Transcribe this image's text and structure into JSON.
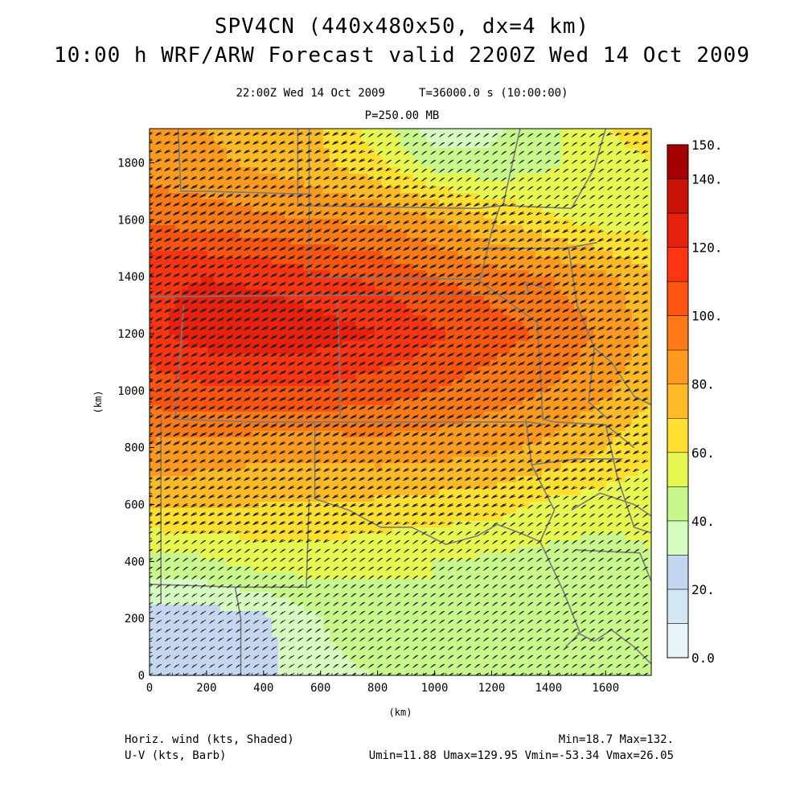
{
  "header": {
    "title_line1": "SPV4CN (440x480x50, dx=4 km)",
    "title_line2": "10:00 h WRF/ARW Forecast valid 2200Z Wed 14 Oct 2009",
    "subtitle_time": "22:00Z Wed 14 Oct 2009     T=36000.0 s (10:00:00)",
    "subtitle_level": "P=250.00 MB"
  },
  "footer": {
    "field1_label": "Horiz. wind (kts, Shaded)",
    "field2_label": "U-V (kts, Barb)",
    "minmax": "Min=18.7 Max=132.",
    "uv_stats": "Umin=11.88 Umax=129.95 Vmin=-53.34 Vmax=26.05"
  },
  "chart_data": {
    "type": "heatmap",
    "xlabel": "(km)",
    "ylabel": "(km)",
    "xlim": [
      0,
      1760
    ],
    "ylim": [
      0,
      1920
    ],
    "x_ticks": [
      0,
      200,
      400,
      600,
      800,
      1000,
      1200,
      1400,
      1600
    ],
    "y_ticks": [
      0,
      200,
      400,
      600,
      800,
      1000,
      1200,
      1400,
      1600,
      1800
    ],
    "colorbar": {
      "levels": [
        0,
        10,
        20,
        30,
        40,
        50,
        60,
        70,
        80,
        90,
        100,
        110,
        120,
        130,
        140,
        150
      ],
      "labels": [
        "0.0",
        "20.",
        "40.",
        "60.",
        "80.",
        "100.",
        "120.",
        "140.",
        "150."
      ],
      "label_values": [
        0,
        20,
        40,
        60,
        80,
        100,
        120,
        140,
        150
      ],
      "colors": [
        "#e8f4fa",
        "#d2e6f3",
        "#c5d6f0",
        "#d7fcc0",
        "#c8f88c",
        "#e6f750",
        "#ffe030",
        "#ffba26",
        "#ff9a1e",
        "#ff7a16",
        "#ff5410",
        "#ff3412",
        "#e8200e",
        "#c8120a",
        "#a80000"
      ]
    },
    "wind_speed_field_kts": {
      "note_x_km": [
        0,
        200,
        400,
        600,
        800,
        1000,
        1200,
        1400,
        1600,
        1760
      ],
      "note_y_km": [
        0,
        200,
        400,
        600,
        800,
        1000,
        1200,
        1400,
        1600,
        1800,
        1920
      ],
      "values": [
        [
          25,
          25,
          27,
          38,
          40,
          45,
          42,
          42,
          45,
          48
        ],
        [
          25,
          25,
          28,
          40,
          45,
          50,
          48,
          46,
          45,
          48
        ],
        [
          45,
          48,
          55,
          55,
          52,
          50,
          48,
          46,
          45,
          48
        ],
        [
          72,
          72,
          70,
          70,
          68,
          66,
          65,
          58,
          55,
          55
        ],
        [
          88,
          86,
          84,
          84,
          86,
          85,
          82,
          78,
          70,
          62
        ],
        [
          105,
          108,
          108,
          108,
          105,
          100,
          95,
          90,
          82,
          72
        ],
        [
          118,
          125,
          128,
          125,
          120,
          112,
          105,
          98,
          88,
          78
        ],
        [
          118,
          120,
          118,
          112,
          108,
          100,
          95,
          90,
          82,
          72
        ],
        [
          98,
          95,
          92,
          90,
          88,
          82,
          70,
          62,
          55,
          55
        ],
        [
          85,
          82,
          78,
          72,
          62,
          45,
          42,
          48,
          55,
          60
        ],
        [
          80,
          80,
          75,
          70,
          55,
          35,
          38,
          48,
          60,
          65
        ]
      ]
    }
  }
}
